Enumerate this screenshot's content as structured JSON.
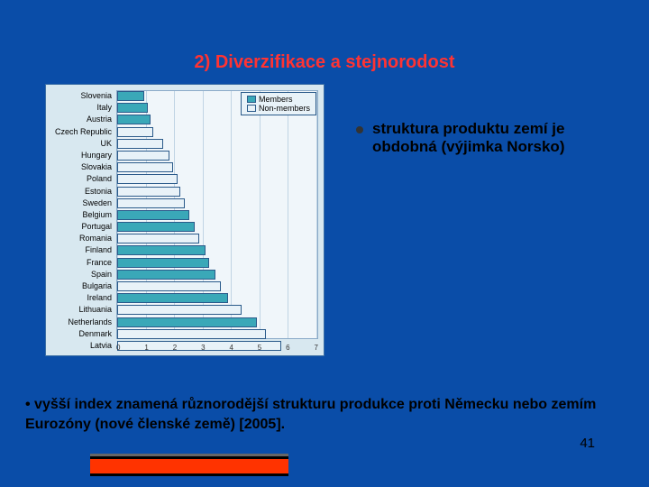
{
  "title": "2) Diverzifikace a stejnorodost",
  "right_bullet": "struktura produktu zemí je obdobná (výjimka Norsko)",
  "footnote": "• vyšší index znamená různorodější strukturu produkce proti Německu  nebo zemím Eurozóny (nové členské země) [2005].",
  "page_number": "41",
  "legend": {
    "members": "Members",
    "nonmembers": "Non-members",
    "members_color": "#3aa8b8",
    "nonmembers_color": "#e8f2f8"
  },
  "chart": {
    "type": "bar",
    "xlim": [
      0,
      7
    ],
    "xticks": [
      "0",
      "1",
      "2",
      "3",
      "4",
      "5",
      "6",
      "7"
    ],
    "background_color": "#f0f6fa",
    "panel_color": "#d8e8f0",
    "grid_color": "#c0d4e4",
    "bar_border": "#2a5a8a",
    "countries": [
      {
        "name": "Slovenia",
        "value": 0.95,
        "member": true
      },
      {
        "name": "Italy",
        "value": 1.05,
        "member": true
      },
      {
        "name": "Austria",
        "value": 1.15,
        "member": true
      },
      {
        "name": "Czech Republic",
        "value": 1.25,
        "member": false
      },
      {
        "name": "UK",
        "value": 1.6,
        "member": false
      },
      {
        "name": "Hungary",
        "value": 1.8,
        "member": false
      },
      {
        "name": "Slovakia",
        "value": 1.95,
        "member": false
      },
      {
        "name": "Poland",
        "value": 2.1,
        "member": false
      },
      {
        "name": "Estonia",
        "value": 2.2,
        "member": false
      },
      {
        "name": "Sweden",
        "value": 2.35,
        "member": false
      },
      {
        "name": "Belgium",
        "value": 2.5,
        "member": true
      },
      {
        "name": "Portugal",
        "value": 2.7,
        "member": true
      },
      {
        "name": "Romania",
        "value": 2.85,
        "member": false
      },
      {
        "name": "Finland",
        "value": 3.05,
        "member": true
      },
      {
        "name": "France",
        "value": 3.2,
        "member": true
      },
      {
        "name": "Spain",
        "value": 3.4,
        "member": true
      },
      {
        "name": "Bulgaria",
        "value": 3.6,
        "member": false
      },
      {
        "name": "Ireland",
        "value": 3.85,
        "member": true
      },
      {
        "name": "Lithuania",
        "value": 4.3,
        "member": false
      },
      {
        "name": "Netherlands",
        "value": 4.85,
        "member": true
      },
      {
        "name": "Denmark",
        "value": 5.15,
        "member": false
      },
      {
        "name": "Latvia",
        "value": 5.7,
        "member": false
      }
    ]
  }
}
